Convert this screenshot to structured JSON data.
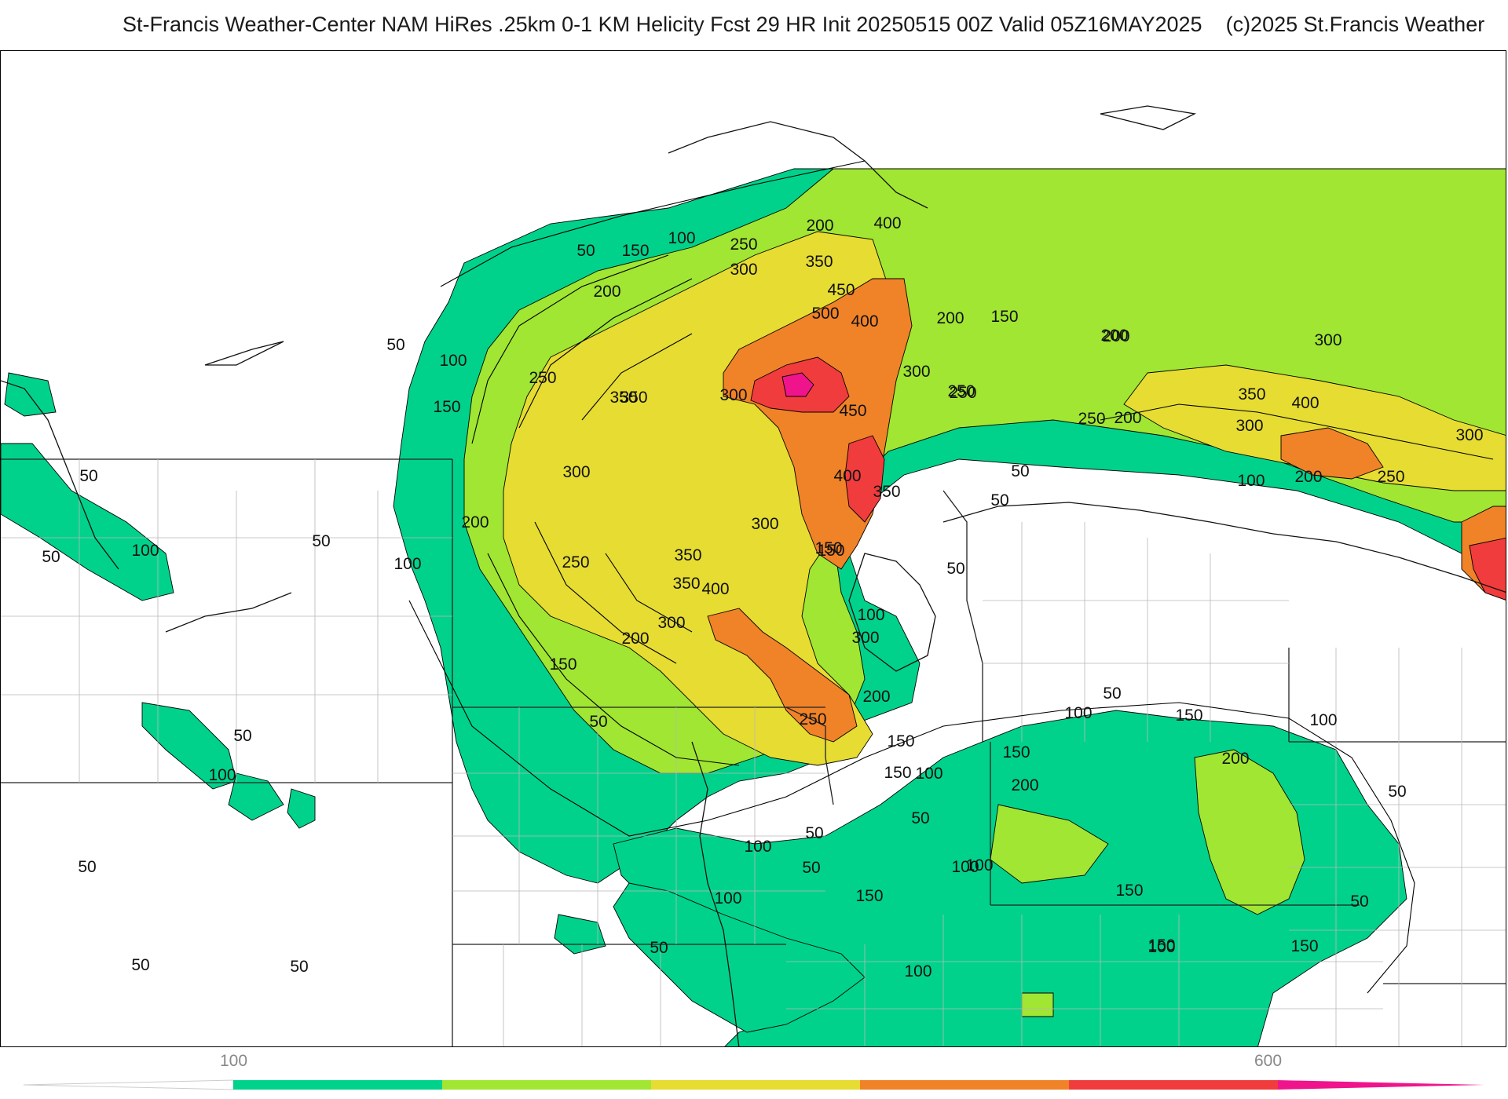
{
  "header": {
    "title": "St-Francis Weather-Center NAM HiRes .25km 0-1 KM Helicity Fcst 29 HR Init 20250515 00Z  Valid 05Z16MAY2025",
    "copyright": "(c)2025 St.Francis Weather"
  },
  "colors": {
    "c100": "#00d28c",
    "c200": "#a0e632",
    "c300": "#e6dc32",
    "c400": "#f08228",
    "c500": "#f03c3c",
    "c600": "#f0148c"
  },
  "colorbar": {
    "ticks": [
      {
        "value": "100"
      },
      {
        "value": "600"
      }
    ]
  },
  "contour_labels": [
    "50",
    "100",
    "150",
    "200",
    "250",
    "300",
    "350",
    "400",
    "450",
    "500"
  ],
  "labels": [
    {
      "t": "50"
    },
    {
      "t": "150"
    },
    {
      "t": "100"
    },
    {
      "t": "250"
    },
    {
      "t": "200"
    },
    {
      "t": "400"
    },
    {
      "t": "200"
    },
    {
      "t": "300"
    },
    {
      "t": "350"
    },
    {
      "t": "450"
    },
    {
      "t": "500"
    },
    {
      "t": "400"
    },
    {
      "t": "200"
    },
    {
      "t": "150"
    },
    {
      "t": "250"
    },
    {
      "t": "300"
    },
    {
      "t": "200"
    },
    {
      "t": "50"
    },
    {
      "t": "100"
    },
    {
      "t": "150"
    },
    {
      "t": "250"
    },
    {
      "t": "350"
    },
    {
      "t": "350"
    },
    {
      "t": "300"
    },
    {
      "t": "300"
    },
    {
      "t": "450"
    },
    {
      "t": "250"
    },
    {
      "t": "250"
    },
    {
      "t": "200"
    },
    {
      "t": "200"
    },
    {
      "t": "300"
    },
    {
      "t": "350"
    },
    {
      "t": "400"
    },
    {
      "t": "300"
    },
    {
      "t": "300"
    },
    {
      "t": "50"
    },
    {
      "t": "400"
    },
    {
      "t": "350"
    },
    {
      "t": "150"
    },
    {
      "t": "100"
    },
    {
      "t": "200"
    },
    {
      "t": "250"
    },
    {
      "t": "50"
    },
    {
      "t": "50"
    },
    {
      "t": "200"
    },
    {
      "t": "350"
    },
    {
      "t": "300"
    },
    {
      "t": "50"
    },
    {
      "t": "50"
    },
    {
      "t": "100"
    },
    {
      "t": "250"
    },
    {
      "t": "350"
    },
    {
      "t": "100"
    },
    {
      "t": "150"
    },
    {
      "t": "50"
    },
    {
      "t": "400"
    },
    {
      "t": "300"
    },
    {
      "t": "200"
    },
    {
      "t": "300"
    },
    {
      "t": "100"
    },
    {
      "t": "150"
    },
    {
      "t": "200"
    },
    {
      "t": "50"
    },
    {
      "t": "150"
    },
    {
      "t": "250"
    },
    {
      "t": "100"
    },
    {
      "t": "50"
    },
    {
      "t": "150"
    },
    {
      "t": "100"
    },
    {
      "t": "150"
    },
    {
      "t": "100"
    },
    {
      "t": "200"
    },
    {
      "t": "50"
    },
    {
      "t": "100"
    },
    {
      "t": "150"
    },
    {
      "t": "50"
    },
    {
      "t": "200"
    },
    {
      "t": "50"
    },
    {
      "t": "50"
    },
    {
      "t": "100"
    },
    {
      "t": "100"
    },
    {
      "t": "50"
    },
    {
      "t": "100"
    },
    {
      "t": "100"
    },
    {
      "t": "50"
    },
    {
      "t": "50"
    },
    {
      "t": "150"
    },
    {
      "t": "150"
    },
    {
      "t": "150"
    },
    {
      "t": "50"
    },
    {
      "t": "50"
    },
    {
      "t": "50"
    },
    {
      "t": "100"
    },
    {
      "t": "150"
    },
    {
      "t": "100"
    },
    {
      "t": "100"
    }
  ]
}
